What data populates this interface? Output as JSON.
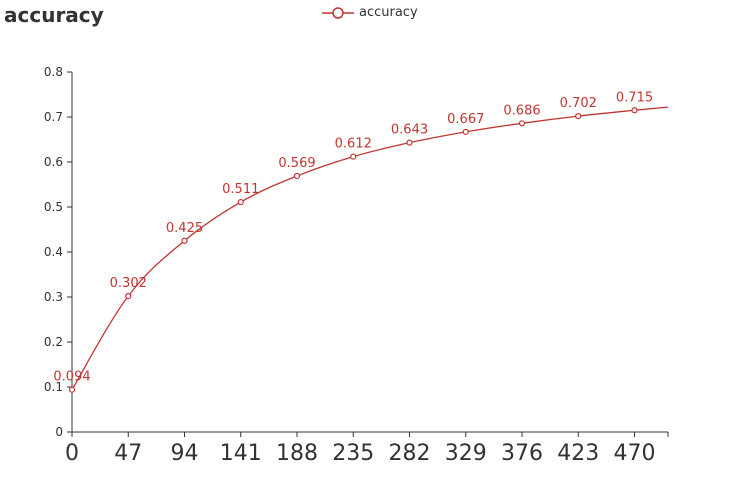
{
  "chart_data": {
    "type": "line",
    "title": "accuracy",
    "legend": {
      "position": "top-center",
      "entries": [
        "accuracy"
      ]
    },
    "x": [
      0,
      47,
      94,
      141,
      188,
      235,
      282,
      329,
      376,
      423,
      470
    ],
    "x_tick_labels": [
      "0",
      "47",
      "94",
      "141",
      "188",
      "235",
      "282",
      "329",
      "376",
      "423",
      "470"
    ],
    "series": [
      {
        "name": "accuracy",
        "values": [
          0.094,
          0.302,
          0.425,
          0.511,
          0.569,
          0.612,
          0.643,
          0.667,
          0.686,
          0.702,
          0.715
        ],
        "labels": [
          "0.094",
          "0.302",
          "0.425",
          "0.511",
          "0.569",
          "0.612",
          "0.643",
          "0.667",
          "0.686",
          "0.702",
          "0.715"
        ],
        "color": "#c23531",
        "smooth": true,
        "marker": "hollow-circle",
        "continues_beyond_last_point_to": 0.722
      }
    ],
    "y_ticks": [
      "0",
      "0.1",
      "0.2",
      "0.3",
      "0.4",
      "0.5",
      "0.6",
      "0.7",
      "0.8"
    ],
    "xlabel": "",
    "ylabel": "",
    "ylim": [
      0,
      0.8
    ],
    "xlim": [
      0,
      470
    ],
    "grid": false
  }
}
